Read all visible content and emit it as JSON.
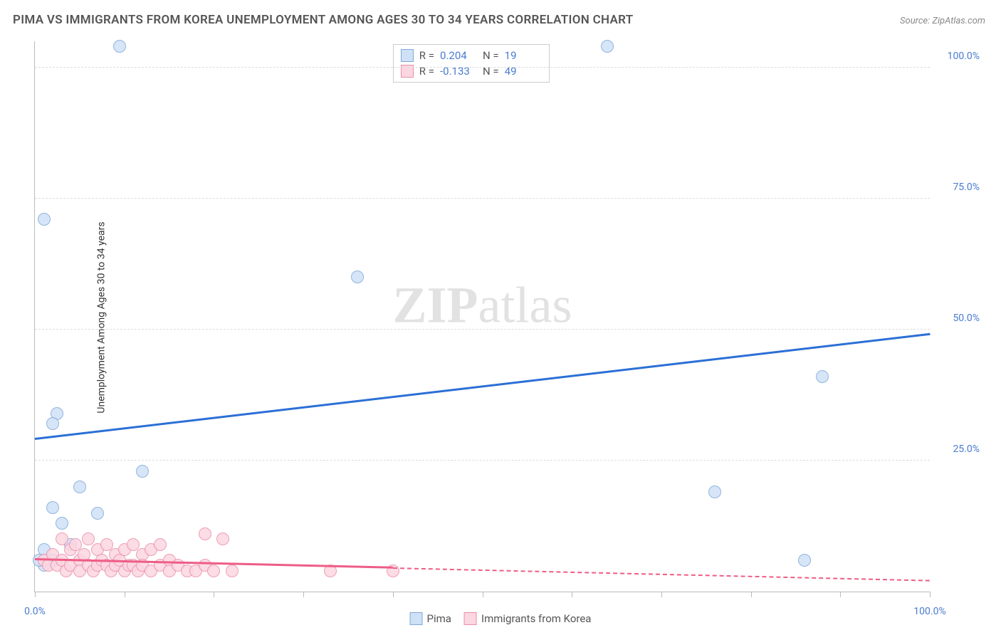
{
  "title": "PIMA VS IMMIGRANTS FROM KOREA UNEMPLOYMENT AMONG AGES 30 TO 34 YEARS CORRELATION CHART",
  "source": "Source: ZipAtlas.com",
  "y_axis_label": "Unemployment Among Ages 30 to 34 years",
  "watermark_bold": "ZIP",
  "watermark_rest": "atlas",
  "chart": {
    "type": "scatter",
    "xlim": [
      0,
      100
    ],
    "ylim": [
      0,
      105
    ],
    "y_ticks": [
      25,
      50,
      75,
      100
    ],
    "y_tick_labels": [
      "25.0%",
      "50.0%",
      "75.0%",
      "100.0%"
    ],
    "x_ticks": [
      0,
      10,
      20,
      30,
      40,
      50,
      60,
      70,
      80,
      90,
      100
    ],
    "x_tick_labels_shown": {
      "0": "0.0%",
      "100": "100.0%"
    },
    "grid_color": "#dddddd",
    "axis_color": "#bbbbbb",
    "tick_label_color": "#4a7bd0",
    "background_color": "#ffffff",
    "point_radius": 9,
    "series": [
      {
        "name": "Pima",
        "fill": "#cfe1f7",
        "stroke": "#7fa8d8",
        "r_value": "0.204",
        "n_value": "19",
        "trend": {
          "x1": 0,
          "y1": 29,
          "x2": 100,
          "y2": 49,
          "solid_until_x": 100,
          "color": "#2b6fd6",
          "width": 2.5
        },
        "points": [
          {
            "x": 1,
            "y": 71
          },
          {
            "x": 9.5,
            "y": 104
          },
          {
            "x": 64,
            "y": 104
          },
          {
            "x": 36,
            "y": 60
          },
          {
            "x": 2.5,
            "y": 34
          },
          {
            "x": 2,
            "y": 32
          },
          {
            "x": 88,
            "y": 41
          },
          {
            "x": 76,
            "y": 19
          },
          {
            "x": 86,
            "y": 6
          },
          {
            "x": 12,
            "y": 23
          },
          {
            "x": 5,
            "y": 20
          },
          {
            "x": 2,
            "y": 16
          },
          {
            "x": 7,
            "y": 15
          },
          {
            "x": 3,
            "y": 13
          },
          {
            "x": 4,
            "y": 9
          },
          {
            "x": 1,
            "y": 8
          },
          {
            "x": 2,
            "y": 6
          },
          {
            "x": 1,
            "y": 5
          },
          {
            "x": 0.5,
            "y": 6
          }
        ]
      },
      {
        "name": "Immigrants from Korea",
        "fill": "#fcd6e1",
        "stroke": "#e98fab",
        "r_value": "-0.133",
        "n_value": "49",
        "trend": {
          "x1": 0,
          "y1": 6,
          "x2": 100,
          "y2": 2,
          "solid_until_x": 40,
          "color": "#ee5d86",
          "width": 2
        },
        "points": [
          {
            "x": 1,
            "y": 6
          },
          {
            "x": 1.5,
            "y": 5
          },
          {
            "x": 2,
            "y": 7
          },
          {
            "x": 2.5,
            "y": 5
          },
          {
            "x": 3,
            "y": 10
          },
          {
            "x": 3,
            "y": 6
          },
          {
            "x": 3.5,
            "y": 4
          },
          {
            "x": 4,
            "y": 8
          },
          {
            "x": 4,
            "y": 5
          },
          {
            "x": 4.5,
            "y": 9
          },
          {
            "x": 5,
            "y": 6
          },
          {
            "x": 5,
            "y": 4
          },
          {
            "x": 5.5,
            "y": 7
          },
          {
            "x": 6,
            "y": 5
          },
          {
            "x": 6,
            "y": 10
          },
          {
            "x": 6.5,
            "y": 4
          },
          {
            "x": 7,
            "y": 8
          },
          {
            "x": 7,
            "y": 5
          },
          {
            "x": 7.5,
            "y": 6
          },
          {
            "x": 8,
            "y": 9
          },
          {
            "x": 8,
            "y": 5
          },
          {
            "x": 8.5,
            "y": 4
          },
          {
            "x": 9,
            "y": 7
          },
          {
            "x": 9,
            "y": 5
          },
          {
            "x": 9.5,
            "y": 6
          },
          {
            "x": 10,
            "y": 8
          },
          {
            "x": 10,
            "y": 4
          },
          {
            "x": 10.5,
            "y": 5
          },
          {
            "x": 11,
            "y": 9
          },
          {
            "x": 11,
            "y": 5
          },
          {
            "x": 11.5,
            "y": 4
          },
          {
            "x": 12,
            "y": 7
          },
          {
            "x": 12,
            "y": 5
          },
          {
            "x": 13,
            "y": 8
          },
          {
            "x": 13,
            "y": 4
          },
          {
            "x": 14,
            "y": 9
          },
          {
            "x": 14,
            "y": 5
          },
          {
            "x": 15,
            "y": 6
          },
          {
            "x": 15,
            "y": 4
          },
          {
            "x": 16,
            "y": 5
          },
          {
            "x": 17,
            "y": 4
          },
          {
            "x": 18,
            "y": 4
          },
          {
            "x": 19,
            "y": 11
          },
          {
            "x": 19,
            "y": 5
          },
          {
            "x": 20,
            "y": 4
          },
          {
            "x": 21,
            "y": 10
          },
          {
            "x": 22,
            "y": 4
          },
          {
            "x": 33,
            "y": 4
          },
          {
            "x": 40,
            "y": 4
          }
        ]
      }
    ]
  },
  "legend": [
    {
      "label": "Pima",
      "fill": "#cfe1f7",
      "stroke": "#7fa8d8"
    },
    {
      "label": "Immigrants from Korea",
      "fill": "#fcd6e1",
      "stroke": "#e98fab"
    }
  ]
}
